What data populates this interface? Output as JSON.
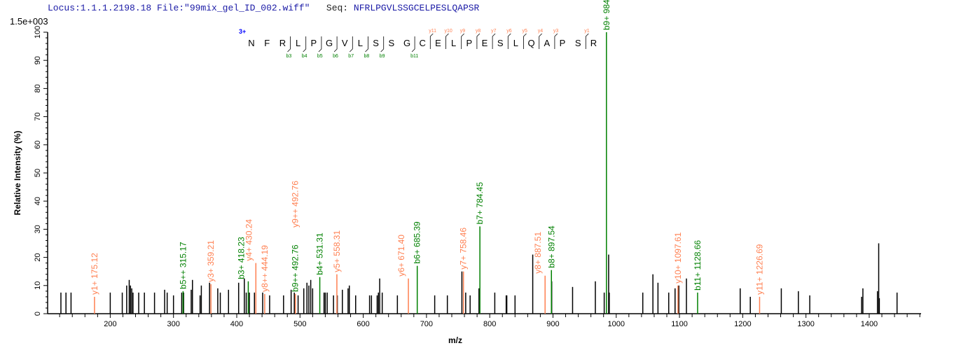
{
  "header": {
    "locus_label": "Locus:1.1.1.2198.18",
    "file_label": "File:\"99mix_gel_ID_002.wiff\"",
    "seq_key": "Seq:",
    "seq_value": "NFRLPGVLSSGCELPESLQAPSR"
  },
  "scale_label": "1.5e+003",
  "colors": {
    "b_ion": "#008000",
    "y_ion": "#ff7f50",
    "peak": "#000000",
    "header": "#1a1aa6",
    "charge": "#0000ff"
  },
  "sequence_annotation": {
    "charge": "3+",
    "residues": [
      "N",
      "F",
      "R",
      "L",
      "P",
      "G",
      "V",
      "L",
      "S",
      "S",
      "G",
      "C",
      "E",
      "L",
      "P",
      "E",
      "S",
      "L",
      "Q",
      "A",
      "P",
      "S",
      "R"
    ],
    "b_ions": [
      {
        "label": "b3",
        "after": 3
      },
      {
        "label": "b4",
        "after": 4
      },
      {
        "label": "b5",
        "after": 5
      },
      {
        "label": "b6",
        "after": 6
      },
      {
        "label": "b7",
        "after": 7
      },
      {
        "label": "b8",
        "after": 8
      },
      {
        "label": "b9",
        "after": 9
      },
      {
        "label": "b11",
        "after": 11
      }
    ],
    "y_ions": [
      {
        "label": "y11",
        "before": 12
      },
      {
        "label": "y10",
        "before": 13
      },
      {
        "label": "y9",
        "before": 14
      },
      {
        "label": "y8",
        "before": 15
      },
      {
        "label": "y7",
        "before": 16
      },
      {
        "label": "y6",
        "before": 17
      },
      {
        "label": "y5",
        "before": 18
      },
      {
        "label": "y4",
        "before": 19
      },
      {
        "label": "y3",
        "before": 20
      },
      {
        "label": "y1",
        "before": 22
      }
    ]
  },
  "chart_data": {
    "type": "bar",
    "xlabel": "m/z",
    "ylabel": "Relative   Intensity (%)",
    "xlim": [
      101,
      1482
    ],
    "ylim": [
      0,
      100
    ],
    "xticks": [
      200,
      300,
      400,
      500,
      600,
      700,
      800,
      900,
      1000,
      1100,
      1200,
      1300,
      1400
    ],
    "yticks": [
      0,
      10,
      20,
      30,
      40,
      50,
      60,
      70,
      80,
      90,
      100
    ],
    "grid": false,
    "annotated_peaks": [
      {
        "mz": 175.12,
        "intensity": 6,
        "label": "y1+ 175.12",
        "type": "y"
      },
      {
        "mz": 315.17,
        "intensity": 8,
        "label": "b5++ 315.17",
        "type": "b"
      },
      {
        "mz": 359.21,
        "intensity": 10.5,
        "label": "y3+ 359.21",
        "type": "y"
      },
      {
        "mz": 418.23,
        "intensity": 11.5,
        "label": "b3+ 418.23",
        "type": "b"
      },
      {
        "mz": 430.24,
        "intensity": 18,
        "label": "y4+ 430.24",
        "type": "y"
      },
      {
        "mz": 444.19,
        "intensity": 7,
        "label": "y8++ 444.19",
        "type": "y"
      },
      {
        "mz": 492.76,
        "intensity": 7,
        "label": "b9++ 492.76",
        "type": "b"
      },
      {
        "mz": 492.76,
        "intensity": 7,
        "label": "y9++ 492.76",
        "type": "y",
        "stack": 1
      },
      {
        "mz": 531.31,
        "intensity": 13,
        "label": "b4+ 531.31",
        "type": "b"
      },
      {
        "mz": 558.31,
        "intensity": 14,
        "label": "y5+ 558.31",
        "type": "y"
      },
      {
        "mz": 671.4,
        "intensity": 12.5,
        "label": "y6+ 671.40",
        "type": "y"
      },
      {
        "mz": 685.39,
        "intensity": 17,
        "label": "b6+ 685.39",
        "type": "b"
      },
      {
        "mz": 758.46,
        "intensity": 15,
        "label": "y7+ 758.46",
        "type": "y"
      },
      {
        "mz": 784.45,
        "intensity": 31,
        "label": "b7+ 784.45",
        "type": "b"
      },
      {
        "mz": 887.51,
        "intensity": 13.5,
        "label": "y8+ 887.51",
        "type": "y"
      },
      {
        "mz": 897.54,
        "intensity": 15.5,
        "label": "b8+ 897.54",
        "type": "b"
      },
      {
        "mz": 984.53,
        "intensity": 100,
        "label": "b9+ 984.53",
        "type": "b"
      },
      {
        "mz": 1097.61,
        "intensity": 10,
        "label": "y10+ 1097.61",
        "type": "y"
      },
      {
        "mz": 1128.66,
        "intensity": 7.5,
        "label": "b11+ 1128.66",
        "type": "b"
      },
      {
        "mz": 1226.69,
        "intensity": 6,
        "label": "y11+ 1226.69",
        "type": "y"
      }
    ],
    "peaks": [
      [
        122,
        7.5
      ],
      [
        130,
        7.5
      ],
      [
        138,
        7.5
      ],
      [
        200,
        7.5
      ],
      [
        219,
        7.5
      ],
      [
        226,
        10
      ],
      [
        230,
        12
      ],
      [
        232,
        10
      ],
      [
        234,
        9
      ],
      [
        236,
        7.5
      ],
      [
        245,
        7.5
      ],
      [
        254,
        7.5
      ],
      [
        270,
        7.5
      ],
      [
        286,
        8.5
      ],
      [
        290,
        7.5
      ],
      [
        300,
        6.5
      ],
      [
        313,
        7.5
      ],
      [
        316,
        7.5
      ],
      [
        328,
        8.5
      ],
      [
        330,
        12
      ],
      [
        342,
        6.5
      ],
      [
        344,
        10
      ],
      [
        357,
        11
      ],
      [
        370,
        9
      ],
      [
        374,
        7.5
      ],
      [
        387,
        8.5
      ],
      [
        403,
        11
      ],
      [
        412,
        12.5
      ],
      [
        415,
        7.5
      ],
      [
        420,
        7.5
      ],
      [
        428,
        7.5
      ],
      [
        441,
        7.5
      ],
      [
        452,
        6.5
      ],
      [
        474,
        6.5
      ],
      [
        486,
        8.5
      ],
      [
        491,
        7.5
      ],
      [
        497,
        6.5
      ],
      [
        506,
        9
      ],
      [
        511,
        11
      ],
      [
        514,
        10
      ],
      [
        517,
        12
      ],
      [
        520,
        9
      ],
      [
        538,
        7.5
      ],
      [
        540,
        7.5
      ],
      [
        543,
        7.5
      ],
      [
        553,
        6.5
      ],
      [
        559,
        6.5
      ],
      [
        567,
        8.5
      ],
      [
        576,
        9
      ],
      [
        578,
        10
      ],
      [
        588,
        6.5
      ],
      [
        610,
        6.5
      ],
      [
        613,
        6.5
      ],
      [
        622,
        6.5
      ],
      [
        624,
        7.5
      ],
      [
        626,
        12.5
      ],
      [
        630,
        7.5
      ],
      [
        654,
        6.5
      ],
      [
        713,
        6.5
      ],
      [
        733,
        6.5
      ],
      [
        756,
        15
      ],
      [
        762,
        7.5
      ],
      [
        769,
        6.5
      ],
      [
        783,
        9
      ],
      [
        808,
        7.5
      ],
      [
        826,
        6.5
      ],
      [
        827,
        6.5
      ],
      [
        840,
        6.5
      ],
      [
        868,
        21
      ],
      [
        898,
        11.5
      ],
      [
        931,
        9.5
      ],
      [
        967,
        11.5
      ],
      [
        981,
        7.5
      ],
      [
        988,
        21
      ],
      [
        989,
        7.5
      ],
      [
        1042,
        7.5
      ],
      [
        1058,
        14
      ],
      [
        1066,
        11
      ],
      [
        1083,
        7.5
      ],
      [
        1093,
        9
      ],
      [
        1099,
        10
      ],
      [
        1111,
        12.5
      ],
      [
        1196,
        9
      ],
      [
        1212,
        6
      ],
      [
        1261,
        9
      ],
      [
        1288,
        8
      ],
      [
        1306,
        6.5
      ],
      [
        1388,
        6
      ],
      [
        1390,
        9
      ],
      [
        1413,
        8
      ],
      [
        1415,
        25
      ],
      [
        1416,
        5.5
      ],
      [
        1444,
        7.5
      ]
    ]
  }
}
